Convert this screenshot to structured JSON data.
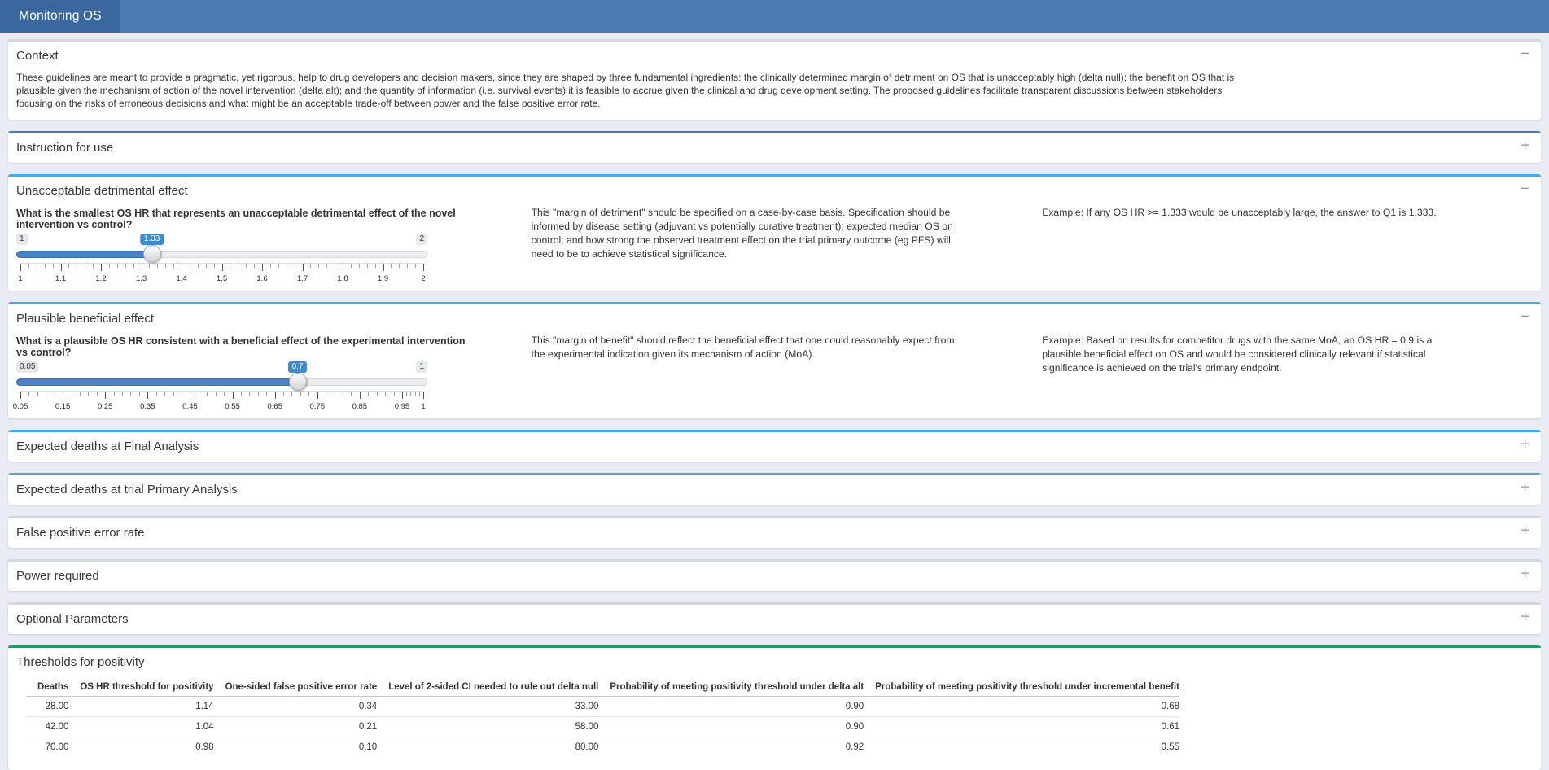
{
  "header": {
    "app_title": "Monitoring OS"
  },
  "colors": {
    "navbar": "#4a7ab1",
    "navbar_tab": "#3a689e",
    "page_background": "#e9ecf4",
    "panel_border_default": "#d2d6de",
    "panel_border_dark_blue": "#4a7ab1",
    "panel_border_light_blue": "#4aa9de",
    "panel_border_green": "#00a65a",
    "slider_fill_blue": "#4e81c2",
    "slider_badge_blue": "#428bca"
  },
  "panels": {
    "context": {
      "title": "Context",
      "toggle": "−",
      "body": "These guidelines are meant to provide a pragmatic, yet rigorous, help to drug developers and decision makers, since they are shaped by three fundamental ingredients: the clinically determined margin of detriment on OS that is unacceptably high (delta null); the benefit on OS that is plausible given the mechanism of action of the novel intervention (delta alt); and the quantity of information (i.e. survival events) it is feasible to accrue given the clinical and drug development setting. The proposed guidelines facilitate transparent discussions between stakeholders focusing on the risks of erroneous decisions and what might be an acceptable trade-off between power and the false positive error rate."
    },
    "instruction": {
      "title": "Instruction for use",
      "toggle": "+"
    },
    "detriment": {
      "title": "Unacceptable detrimental effect",
      "toggle": "−",
      "question": "What is the smallest OS HR that represents an unacceptable detrimental effect of the novel intervention vs control?",
      "note": "This \"margin of detriment\" should be specified on a case-by-case basis. Specification should be informed by disease setting (adjuvant vs potentially curative treatment); expected median OS on control; and how strong the observed treatment effect on the trial primary outcome (eg PFS) will need to be to achieve statistical significance.",
      "example": "Example: If any OS HR >= 1.333 would be unacceptably large, the answer to Q1 is 1.333."
    },
    "benefit": {
      "title": "Plausible beneficial effect",
      "toggle": "−",
      "question": "What is a plausible OS HR consistent with a beneficial effect of the experimental intervention vs control?",
      "note": "This \"margin of benefit\" should reflect the beneficial effect that one could reasonably expect from the experimental indication given its mechanism of action (MoA).",
      "example": "Example: Based on results for competitor drugs with the same MoA, an OS HR = 0.9 is a plausible beneficial effect on OS and would be considered clinically relevant if statistical significance is achieved on the trial's primary endpoint."
    },
    "deaths_final": {
      "title": "Expected deaths at Final Analysis",
      "toggle": "+"
    },
    "deaths_primary": {
      "title": "Expected deaths at trial Primary Analysis",
      "toggle": "+"
    },
    "fp_rate": {
      "title": "False positive error rate",
      "toggle": "+"
    },
    "power": {
      "title": "Power required",
      "toggle": "+"
    },
    "optional": {
      "title": "Optional Parameters",
      "toggle": "+"
    },
    "thresholds": {
      "title": "Thresholds for positivity"
    }
  },
  "sliders": {
    "detriment": {
      "min": 1,
      "max": 2,
      "value": 1.33,
      "min_label": "1",
      "max_label": "2",
      "value_label": "1.33",
      "ticks": [
        {
          "v": 1,
          "label": "1"
        },
        {
          "v": 1.1,
          "label": "1.1"
        },
        {
          "v": 1.2,
          "label": "1.2"
        },
        {
          "v": 1.3,
          "label": "1.3"
        },
        {
          "v": 1.4,
          "label": "1.4"
        },
        {
          "v": 1.5,
          "label": "1.5"
        },
        {
          "v": 1.6,
          "label": "1.6"
        },
        {
          "v": 1.7,
          "label": "1.7"
        },
        {
          "v": 1.8,
          "label": "1.8"
        },
        {
          "v": 1.9,
          "label": "1.9"
        },
        {
          "v": 2,
          "label": "2"
        }
      ]
    },
    "benefit": {
      "min": 0.05,
      "max": 1,
      "value": 0.7,
      "min_label": "0.05",
      "max_label": "1",
      "value_label": "0.7",
      "ticks": [
        {
          "v": 0.05,
          "label": "0.05"
        },
        {
          "v": 0.15,
          "label": "0.15"
        },
        {
          "v": 0.25,
          "label": "0.25"
        },
        {
          "v": 0.35,
          "label": "0.35"
        },
        {
          "v": 0.45,
          "label": "0.45"
        },
        {
          "v": 0.55,
          "label": "0.55"
        },
        {
          "v": 0.65,
          "label": "0.65"
        },
        {
          "v": 0.75,
          "label": "0.75"
        },
        {
          "v": 0.85,
          "label": "0.85"
        },
        {
          "v": 0.95,
          "label": "0.95"
        },
        {
          "v": 1,
          "label": "1"
        }
      ]
    }
  },
  "thresholds_table": {
    "headers": [
      "Deaths",
      "OS HR threshold for positivity",
      "One-sided false positive error rate",
      "Level of 2-sided CI needed to rule out delta null",
      "Probability of meeting positivity threshold under delta alt",
      "Probability of meeting positivity threshold under incremental benefit"
    ],
    "rows": [
      [
        "28.00",
        "1.14",
        "0.34",
        "33.00",
        "0.90",
        "0.68"
      ],
      [
        "42.00",
        "1.04",
        "0.21",
        "58.00",
        "0.90",
        "0.61"
      ],
      [
        "70.00",
        "0.98",
        "0.10",
        "80.00",
        "0.92",
        "0.55"
      ]
    ]
  }
}
